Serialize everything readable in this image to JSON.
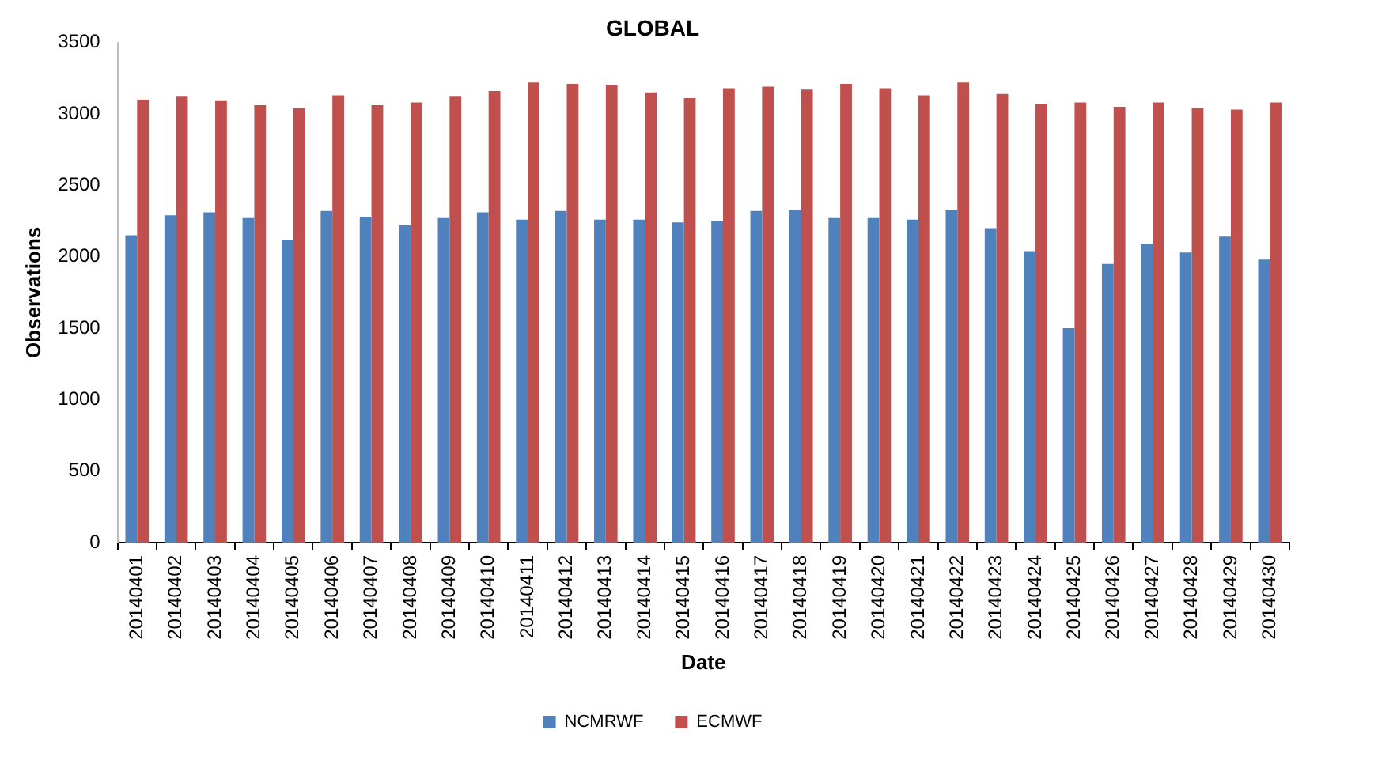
{
  "chart_data": {
    "type": "bar",
    "title": "GLOBAL",
    "xlabel": "Date",
    "ylabel": "Observations",
    "categories": [
      "20140401",
      "20140402",
      "20140403",
      "20140404",
      "20140405",
      "20140406",
      "20140407",
      "20140408",
      "20140409",
      "20140410",
      "20140411",
      "20140412",
      "20140413",
      "20140414",
      "20140415",
      "20140416",
      "20140417",
      "20140418",
      "20140419",
      "20140420",
      "20140421",
      "20140422",
      "20140423",
      "20140424",
      "20140425",
      "20140426",
      "20140427",
      "20140428",
      "20140429",
      "20140430"
    ],
    "series": [
      {
        "name": "NCMRWF",
        "color": "#4f81bd",
        "values": [
          2150,
          2290,
          2310,
          2270,
          2120,
          2320,
          2280,
          2220,
          2270,
          2310,
          2260,
          2320,
          2260,
          2260,
          2240,
          2250,
          2320,
          2330,
          2270,
          2270,
          2260,
          2330,
          2200,
          2040,
          1500,
          1950,
          2090,
          2030,
          2140,
          1980
        ]
      },
      {
        "name": "ECMWF",
        "color": "#c0504d",
        "values": [
          3100,
          3120,
          3090,
          3060,
          3040,
          3130,
          3060,
          3080,
          3120,
          3160,
          3220,
          3210,
          3200,
          3150,
          3110,
          3180,
          3190,
          3170,
          3210,
          3180,
          3130,
          3220,
          3140,
          3070,
          3080,
          3050,
          3080,
          3040,
          3030,
          3080
        ]
      }
    ],
    "ylim": [
      0,
      3500
    ],
    "yticks": [
      0,
      500,
      1000,
      1500,
      2000,
      2500,
      3000,
      3500
    ],
    "grid": false,
    "legend": "bottom"
  }
}
